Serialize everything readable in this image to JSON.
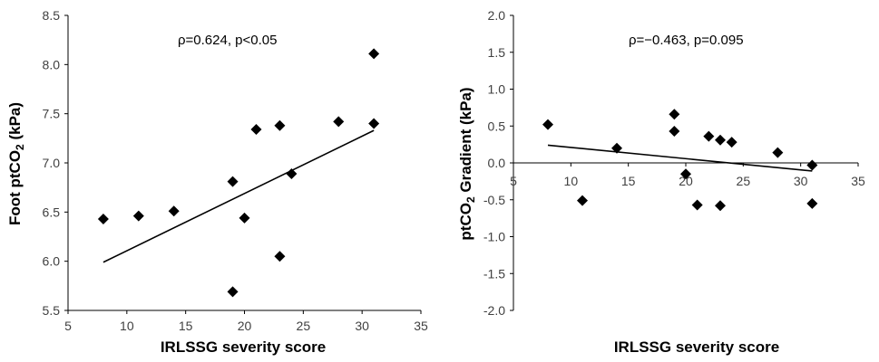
{
  "chart_data": [
    {
      "type": "scatter",
      "xlabel": "IRLSSG severity score",
      "ylabel_main": "Foot ptCO",
      "ylabel_sub": "2",
      "ylabel_tail": " (kPa)",
      "annotation": "ρ=0.624, p<0.05",
      "xlim": [
        5,
        35
      ],
      "ylim": [
        5.5,
        8.5
      ],
      "x_ticks": [
        5,
        10,
        15,
        20,
        25,
        30,
        35
      ],
      "x_tick_labels": [
        "5",
        "10",
        "15",
        "20",
        "25",
        "30",
        "35"
      ],
      "y_ticks": [
        5.5,
        6.0,
        6.5,
        7.0,
        7.5,
        8.0,
        8.5
      ],
      "y_tick_labels": [
        "5.5",
        "6.0",
        "6.5",
        "7.0",
        "7.5",
        "8.0",
        "8.5"
      ],
      "grid": false,
      "points": [
        {
          "x": 8,
          "y": 6.43
        },
        {
          "x": 11,
          "y": 6.46
        },
        {
          "x": 14,
          "y": 6.51
        },
        {
          "x": 19,
          "y": 6.81
        },
        {
          "x": 19,
          "y": 5.69
        },
        {
          "x": 20,
          "y": 6.44
        },
        {
          "x": 21,
          "y": 7.34
        },
        {
          "x": 23,
          "y": 7.38
        },
        {
          "x": 23,
          "y": 6.05
        },
        {
          "x": 24,
          "y": 6.89
        },
        {
          "x": 28,
          "y": 7.42
        },
        {
          "x": 31,
          "y": 7.4
        },
        {
          "x": 31,
          "y": 8.11
        }
      ],
      "trendline": [
        {
          "x": 8,
          "y": 5.99
        },
        {
          "x": 31,
          "y": 7.33
        }
      ]
    },
    {
      "type": "scatter",
      "xlabel": "IRLSSG severity score",
      "ylabel_main": "ptCO",
      "ylabel_sub": "2",
      "ylabel_tail": " Gradient (kPa)",
      "annotation": "ρ=−0.463, p=0.095",
      "xlim": [
        5,
        35
      ],
      "ylim": [
        -2.0,
        2.0
      ],
      "x_axis_at": 0,
      "x_ticks": [
        5,
        10,
        15,
        20,
        25,
        30,
        35
      ],
      "x_tick_labels": [
        "5",
        "10",
        "15",
        "20",
        "25",
        "30",
        "35"
      ],
      "y_ticks": [
        -2.0,
        -1.5,
        -1.0,
        -0.5,
        0.0,
        0.5,
        1.0,
        1.5,
        2.0
      ],
      "y_tick_labels": [
        "-2.0",
        "-1.5",
        "-1.0",
        "-0.5",
        "0.0",
        "0.5",
        "1.0",
        "1.5",
        "2.0"
      ],
      "grid": false,
      "points": [
        {
          "x": 8,
          "y": 0.52
        },
        {
          "x": 11,
          "y": -0.51
        },
        {
          "x": 14,
          "y": 0.2
        },
        {
          "x": 19,
          "y": 0.66
        },
        {
          "x": 19,
          "y": 0.43
        },
        {
          "x": 20,
          "y": -0.15
        },
        {
          "x": 21,
          "y": -0.57
        },
        {
          "x": 22,
          "y": 0.36
        },
        {
          "x": 23,
          "y": 0.31
        },
        {
          "x": 23,
          "y": -0.58
        },
        {
          "x": 24,
          "y": 0.28
        },
        {
          "x": 28,
          "y": 0.14
        },
        {
          "x": 31,
          "y": -0.03
        },
        {
          "x": 31,
          "y": -0.55
        }
      ],
      "trendline": [
        {
          "x": 8,
          "y": 0.24
        },
        {
          "x": 31,
          "y": -0.11
        }
      ]
    }
  ]
}
